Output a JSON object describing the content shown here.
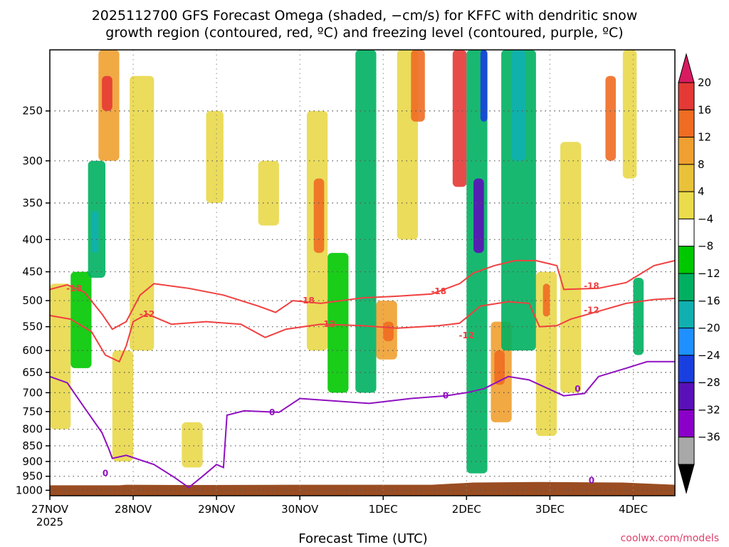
{
  "chart_data": {
    "type": "heatmap",
    "title_line1": "2025112700 GFS Forecast Omega (shaded, −cm/s) for KFFC with dendritic snow",
    "title_line2": "growth region (contoured, red, ºC) and freezing level (contoured, purple, ºC)",
    "xlabel": "Forecast Time (UTC)",
    "credit": "coolwx.com/models",
    "x_start_year": "2025",
    "x_ticks": [
      {
        "label": "27NOV",
        "t": 0
      },
      {
        "label": "28NOV",
        "t": 24
      },
      {
        "label": "29NOV",
        "t": 48
      },
      {
        "label": "30NOV",
        "t": 72
      },
      {
        "label": "1DEC",
        "t": 96
      },
      {
        "label": "2DEC",
        "t": 120
      },
      {
        "label": "3DEC",
        "t": 144
      },
      {
        "label": "4DEC",
        "t": 168
      }
    ],
    "x_range_hours": [
      0,
      180
    ],
    "y_ticks": [
      {
        "label": "250",
        "p": 250
      },
      {
        "label": "300",
        "p": 300
      },
      {
        "label": "350",
        "p": 350
      },
      {
        "label": "400",
        "p": 400
      },
      {
        "label": "450",
        "p": 450
      },
      {
        "label": "500",
        "p": 500
      },
      {
        "label": "550",
        "p": 550
      },
      {
        "label": "600",
        "p": 600
      },
      {
        "label": "650",
        "p": 650
      },
      {
        "label": "700",
        "p": 700
      },
      {
        "label": "750",
        "p": 750
      },
      {
        "label": "800",
        "p": 800
      },
      {
        "label": "850",
        "p": 850
      },
      {
        "label": "900",
        "p": 900
      },
      {
        "label": "950",
        "p": 950
      },
      {
        "label": "1000",
        "p": 1000
      }
    ],
    "y_range_hpa": [
      200,
      1020
    ],
    "colorbar": {
      "labels": [
        "20",
        "16",
        "12",
        "8",
        "4",
        "−4",
        "−8",
        "−12",
        "−16",
        "−20",
        "−24",
        "−28",
        "−32",
        "−36"
      ],
      "colors": [
        "#d81b60",
        "#e53935",
        "#ef6c22",
        "#f0a030",
        "#e9c23a",
        "#eadc4a",
        "#ffffff",
        "#00c800",
        "#00b060",
        "#10b0b0",
        "#1e90ff",
        "#1a3fe0",
        "#5a10b8",
        "#8a00c8",
        "#a8a8a8",
        "#000000"
      ]
    },
    "contour_labels": {
      "dgz_upper": "-18",
      "dgz_lower": "-12",
      "freezing": "0"
    },
    "dgz_upper_c": [
      {
        "t": 0,
        "p": 480
      },
      {
        "t": 5,
        "p": 472
      },
      {
        "t": 10,
        "p": 485
      },
      {
        "t": 15,
        "p": 525
      },
      {
        "t": 18,
        "p": 555
      },
      {
        "t": 22,
        "p": 540
      },
      {
        "t": 26,
        "p": 490
      },
      {
        "t": 30,
        "p": 470
      },
      {
        "t": 40,
        "p": 478
      },
      {
        "t": 50,
        "p": 490
      },
      {
        "t": 60,
        "p": 510
      },
      {
        "t": 65,
        "p": 522
      },
      {
        "t": 70,
        "p": 500
      },
      {
        "t": 78,
        "p": 505
      },
      {
        "t": 90,
        "p": 495
      },
      {
        "t": 100,
        "p": 492
      },
      {
        "t": 110,
        "p": 488
      },
      {
        "t": 118,
        "p": 470
      },
      {
        "t": 122,
        "p": 452
      },
      {
        "t": 128,
        "p": 440
      },
      {
        "t": 134,
        "p": 432
      },
      {
        "t": 140,
        "p": 432
      },
      {
        "t": 146,
        "p": 440
      },
      {
        "t": 148,
        "p": 480
      },
      {
        "t": 158,
        "p": 478
      },
      {
        "t": 166,
        "p": 468
      },
      {
        "t": 174,
        "p": 440
      },
      {
        "t": 180,
        "p": 432
      }
    ],
    "dgz_lower_c": [
      {
        "t": 0,
        "p": 528
      },
      {
        "t": 6,
        "p": 535
      },
      {
        "t": 12,
        "p": 560
      },
      {
        "t": 16,
        "p": 610
      },
      {
        "t": 20,
        "p": 625
      },
      {
        "t": 22,
        "p": 590
      },
      {
        "t": 24,
        "p": 540
      },
      {
        "t": 28,
        "p": 525
      },
      {
        "t": 35,
        "p": 545
      },
      {
        "t": 45,
        "p": 540
      },
      {
        "t": 55,
        "p": 545
      },
      {
        "t": 62,
        "p": 572
      },
      {
        "t": 68,
        "p": 555
      },
      {
        "t": 78,
        "p": 545
      },
      {
        "t": 90,
        "p": 548
      },
      {
        "t": 100,
        "p": 553
      },
      {
        "t": 112,
        "p": 548
      },
      {
        "t": 118,
        "p": 543
      },
      {
        "t": 124,
        "p": 510
      },
      {
        "t": 132,
        "p": 502
      },
      {
        "t": 138,
        "p": 505
      },
      {
        "t": 141,
        "p": 550
      },
      {
        "t": 146,
        "p": 548
      },
      {
        "t": 150,
        "p": 535
      },
      {
        "t": 158,
        "p": 520
      },
      {
        "t": 166,
        "p": 505
      },
      {
        "t": 174,
        "p": 498
      },
      {
        "t": 180,
        "p": 496
      }
    ],
    "freezing_c": [
      {
        "t": 0,
        "p": 660
      },
      {
        "t": 5,
        "p": 675
      },
      {
        "t": 10,
        "p": 740
      },
      {
        "t": 15,
        "p": 810
      },
      {
        "t": 17,
        "p": 860
      },
      {
        "t": 18,
        "p": 890
      },
      {
        "t": 22,
        "p": 880
      },
      {
        "t": 30,
        "p": 910
      },
      {
        "t": 36,
        "p": 955
      },
      {
        "t": 40,
        "p": 990
      },
      {
        "t": 44,
        "p": 950
      },
      {
        "t": 48,
        "p": 910
      },
      {
        "t": 50,
        "p": 920
      },
      {
        "t": 51,
        "p": 760
      },
      {
        "t": 56,
        "p": 748
      },
      {
        "t": 66,
        "p": 752
      },
      {
        "t": 72,
        "p": 715
      },
      {
        "t": 80,
        "p": 720
      },
      {
        "t": 92,
        "p": 728
      },
      {
        "t": 104,
        "p": 715
      },
      {
        "t": 114,
        "p": 708
      },
      {
        "t": 120,
        "p": 700
      },
      {
        "t": 125,
        "p": 690
      },
      {
        "t": 132,
        "p": 660
      },
      {
        "t": 138,
        "p": 668
      },
      {
        "t": 148,
        "p": 708
      },
      {
        "t": 154,
        "p": 702
      },
      {
        "t": 158,
        "p": 660
      },
      {
        "t": 166,
        "p": 640
      },
      {
        "t": 172,
        "p": 625
      },
      {
        "t": 180,
        "p": 625
      }
    ],
    "terrain_surface_p": [
      {
        "t": 0,
        "p": 982
      },
      {
        "t": 20,
        "p": 982
      },
      {
        "t": 22,
        "p": 980
      },
      {
        "t": 40,
        "p": 981
      },
      {
        "t": 70,
        "p": 980
      },
      {
        "t": 110,
        "p": 980
      },
      {
        "t": 122,
        "p": 972
      },
      {
        "t": 140,
        "p": 970
      },
      {
        "t": 165,
        "p": 972
      },
      {
        "t": 180,
        "p": 980
      }
    ],
    "omega_regions": [
      {
        "t0": 0,
        "t1": 6,
        "p0": 470,
        "p1": 800,
        "v": 6
      },
      {
        "t0": 6,
        "t1": 12,
        "p0": 450,
        "p1": 640,
        "v": -6
      },
      {
        "t0": 11,
        "t1": 16,
        "p0": 300,
        "p1": 460,
        "v": -10
      },
      {
        "t0": 12,
        "t1": 14,
        "p0": 360,
        "p1": 420,
        "v": -14
      },
      {
        "t0": 14,
        "t1": 20,
        "p0": 200,
        "p1": 300,
        "v": 10
      },
      {
        "t0": 15,
        "t1": 18,
        "p0": 220,
        "p1": 250,
        "v": 16
      },
      {
        "t0": 18,
        "t1": 24,
        "p0": 600,
        "p1": 900,
        "v": 6
      },
      {
        "t0": 23,
        "t1": 30,
        "p0": 220,
        "p1": 600,
        "v": 6
      },
      {
        "t0": 38,
        "t1": 44,
        "p0": 780,
        "p1": 920,
        "v": 5
      },
      {
        "t0": 45,
        "t1": 50,
        "p0": 250,
        "p1": 350,
        "v": 5
      },
      {
        "t0": 60,
        "t1": 66,
        "p0": 300,
        "p1": 380,
        "v": 5
      },
      {
        "t0": 74,
        "t1": 80,
        "p0": 250,
        "p1": 600,
        "v": 6
      },
      {
        "t0": 76,
        "t1": 79,
        "p0": 320,
        "p1": 420,
        "v": 12
      },
      {
        "t0": 80,
        "t1": 86,
        "p0": 420,
        "p1": 700,
        "v": -6
      },
      {
        "t0": 88,
        "t1": 94,
        "p0": 200,
        "p1": 700,
        "v": -8
      },
      {
        "t0": 94,
        "t1": 100,
        "p0": 500,
        "p1": 620,
        "v": 8
      },
      {
        "t0": 96,
        "t1": 99,
        "p0": 540,
        "p1": 580,
        "v": 14
      },
      {
        "t0": 100,
        "t1": 106,
        "p0": 200,
        "p1": 400,
        "v": 6
      },
      {
        "t0": 104,
        "t1": 108,
        "p0": 200,
        "p1": 260,
        "v": 14
      },
      {
        "t0": 116,
        "t1": 120,
        "p0": 200,
        "p1": 330,
        "v": 16
      },
      {
        "t0": 120,
        "t1": 126,
        "p0": 200,
        "p1": 940,
        "v": -10
      },
      {
        "t0": 122,
        "t1": 125,
        "p0": 320,
        "p1": 420,
        "v": -26
      },
      {
        "t0": 124,
        "t1": 126,
        "p0": 200,
        "p1": 260,
        "v": -22
      },
      {
        "t0": 127,
        "t1": 133,
        "p0": 540,
        "p1": 780,
        "v": 8
      },
      {
        "t0": 128,
        "t1": 131,
        "p0": 600,
        "p1": 680,
        "v": 14
      },
      {
        "t0": 130,
        "t1": 140,
        "p0": 200,
        "p1": 600,
        "v": -8
      },
      {
        "t0": 133,
        "t1": 137,
        "p0": 200,
        "p1": 300,
        "v": -14
      },
      {
        "t0": 140,
        "t1": 146,
        "p0": 450,
        "p1": 820,
        "v": 6
      },
      {
        "t0": 142,
        "t1": 144,
        "p0": 470,
        "p1": 530,
        "v": 12
      },
      {
        "t0": 147,
        "t1": 153,
        "p0": 280,
        "p1": 700,
        "v": 5
      },
      {
        "t0": 160,
        "t1": 163,
        "p0": 220,
        "p1": 300,
        "v": 12
      },
      {
        "t0": 165,
        "t1": 169,
        "p0": 200,
        "p1": 320,
        "v": 6
      },
      {
        "t0": 168,
        "t1": 171,
        "p0": 460,
        "p1": 610,
        "v": -8
      }
    ]
  }
}
